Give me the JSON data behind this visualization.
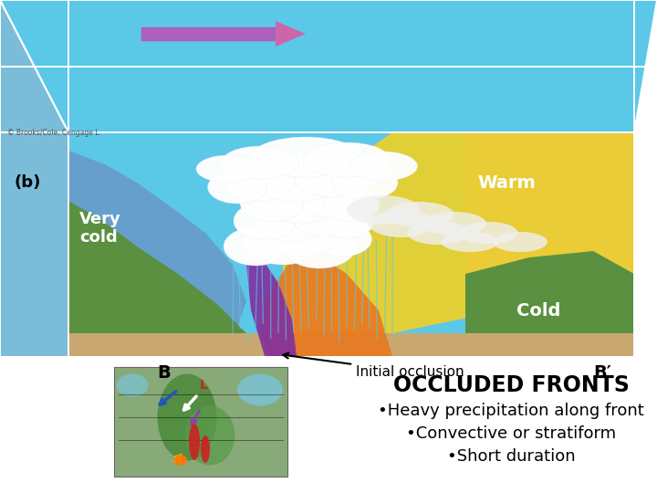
{
  "title": "OCCLUDED FRONTS",
  "bullet1": "•Heavy precipitation along front",
  "bullet2": "•Convective or stratiform",
  "bullet3": "•Short duration",
  "title_fontsize": 17,
  "bullet_fontsize": 13,
  "title_color": "#000000",
  "bullet_color": "#000000",
  "background_color": "#ffffff",
  "label_warm": "Warm",
  "label_cold": "Cold",
  "label_very_cold": "Very\ncold",
  "label_b": "B",
  "label_b_prime": "B′",
  "label_b_paren": "(b)",
  "label_init_occ": "Initial occlusion",
  "sky_color": "#5BC8E8",
  "sky_dark": "#3A9EC0",
  "left_face_color": "#7BBDD8",
  "very_cold_color": "#7BAAD0",
  "warm_yellow": "#F5D020",
  "cold_lavender": "#C0B8D8",
  "ground_color": "#C8A870",
  "green_terrain": "#5A9040",
  "green_dark": "#3A7030",
  "rain_color": "#60C8E0",
  "orange_front": "#E87820",
  "purple_front": "#8030A0",
  "cloud_white": "#FFFFFF",
  "box_line_color": "#FFFFFF",
  "arrow_color_left": "#8844BB",
  "arrow_color_right": "#CC6699",
  "copyright_text": "© Brooks/Cole, Cengage L.",
  "inset_bg": "#90B870"
}
